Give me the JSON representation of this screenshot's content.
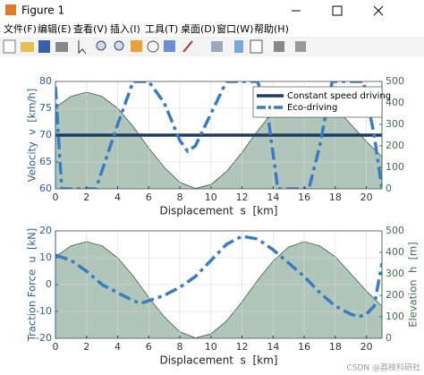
{
  "window": {
    "title": "Figure 1",
    "menu": [
      "文件(F)",
      "编辑(E)",
      "查看(V)",
      "插入(I)",
      "工具(T)",
      "桌面(D)",
      "窗口(W)",
      "帮助(H)"
    ],
    "watermark": "CSDN @荔枝科研社"
  },
  "chart_data": [
    {
      "type": "line",
      "xlabel": "Displacement  s  [km]",
      "ylabel": "Velocity  v  [km/h]",
      "xlim": [
        0,
        21
      ],
      "xticks": [
        0,
        2,
        4,
        6,
        8,
        10,
        12,
        14,
        16,
        18,
        20
      ],
      "ylim": [
        60,
        80
      ],
      "yticks": [
        60,
        65,
        70,
        75,
        80
      ],
      "y2lim": [
        0,
        500
      ],
      "y2ticks": [
        0,
        100,
        200,
        300,
        400,
        500
      ],
      "yaxis_color": "#2f5f8f",
      "y2axis_color": "#4a6b57",
      "grid": true,
      "legend": "northeast",
      "series": [
        {
          "color": "#3c5a47",
          "fill": "#a3bcae",
          "axis": "y2",
          "x": [
            0,
            1,
            2,
            3,
            4,
            5,
            6,
            7,
            8,
            9,
            10,
            11,
            12,
            13,
            14,
            15,
            16,
            17,
            18,
            19,
            20,
            21
          ],
          "values": [
            380,
            430,
            450,
            430,
            375,
            290,
            190,
            100,
            30,
            2,
            20,
            80,
            170,
            270,
            360,
            425,
            450,
            430,
            380,
            300,
            220,
            150
          ]
        },
        {
          "name": "Constant speed driving",
          "color": "#1f3a63",
          "linestyle": "-",
          "axis": "y",
          "x": [
            0,
            21
          ],
          "values": [
            70,
            70
          ]
        },
        {
          "name": "Eco-driving",
          "color": "#3b7cbf",
          "linestyle": "-.",
          "axis": "y",
          "x": [
            0,
            0.4,
            2.6,
            4,
            5,
            6,
            7,
            8,
            8.5,
            9,
            10,
            11,
            12,
            13,
            13.6,
            14.3,
            16.3,
            17,
            17.8,
            19.8,
            20.5,
            21
          ],
          "values": [
            79,
            60,
            60,
            72,
            80,
            80,
            76,
            69,
            67,
            68,
            74,
            80,
            80,
            80,
            75,
            60,
            60,
            68,
            80,
            80,
            70,
            60
          ]
        }
      ]
    },
    {
      "type": "line",
      "xlabel": "Displacement  s  [km]",
      "ylabel": "Traction Force  u  [kN]",
      "y2label": "Elevation  h  [m]",
      "xlim": [
        0,
        21
      ],
      "xticks": [
        0,
        2,
        4,
        6,
        8,
        10,
        12,
        14,
        16,
        18,
        20
      ],
      "ylim": [
        -20,
        20
      ],
      "yticks": [
        -20,
        -10,
        0,
        10,
        20
      ],
      "y2lim": [
        0,
        500
      ],
      "y2ticks": [
        0,
        100,
        200,
        300,
        400,
        500
      ],
      "yaxis_color": "#2f5f8f",
      "y2axis_color": "#4a6b57",
      "grid": true,
      "series": [
        {
          "color": "#3c5a47",
          "fill": "#a3bcae",
          "axis": "y2",
          "x": [
            0,
            1,
            2,
            3,
            4,
            5,
            6,
            7,
            8,
            9,
            10,
            11,
            12,
            13,
            14,
            15,
            16,
            17,
            18,
            19,
            20,
            21
          ],
          "values": [
            380,
            430,
            450,
            430,
            375,
            290,
            190,
            100,
            30,
            2,
            20,
            80,
            170,
            270,
            360,
            425,
            450,
            430,
            380,
            300,
            220,
            150
          ]
        },
        {
          "color": "#3b7cbf",
          "linestyle": "-.",
          "axis": "y",
          "x": [
            0,
            1,
            2,
            3,
            4,
            5,
            5.5,
            6,
            7,
            8,
            9,
            10,
            11,
            12,
            13,
            14,
            15,
            16,
            17,
            18,
            19,
            19.5,
            20,
            20.5,
            21
          ],
          "values": [
            11,
            9,
            5,
            0,
            -3,
            -6,
            -7,
            -6,
            -4,
            -1,
            3,
            9,
            15,
            18,
            17,
            13,
            8,
            3,
            -3,
            -8,
            -11,
            -12,
            -11,
            -8,
            8
          ]
        }
      ]
    }
  ]
}
